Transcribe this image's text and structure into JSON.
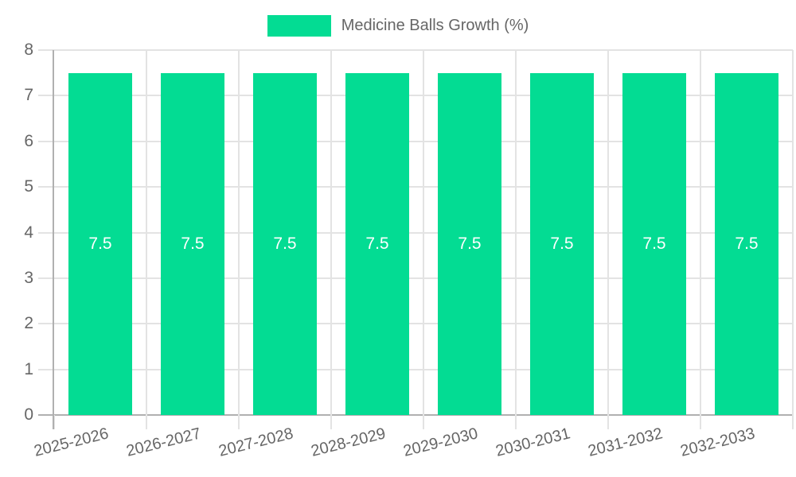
{
  "chart_data": {
    "type": "bar",
    "title": "Medicine Balls Growth (%)",
    "legend": {
      "label": "Medicine Balls Growth (%)",
      "position": "top"
    },
    "categories": [
      "2025-2026",
      "2026-2027",
      "2027-2028",
      "2028-2029",
      "2029-2030",
      "2030-2031",
      "2031-2032",
      "2032-2033"
    ],
    "series": [
      {
        "name": "Medicine Balls Growth (%)",
        "values": [
          7.5,
          7.5,
          7.5,
          7.5,
          7.5,
          7.5,
          7.5,
          7.5
        ]
      }
    ],
    "value_labels": [
      "7.5",
      "7.5",
      "7.5",
      "7.5",
      "7.5",
      "7.5",
      "7.5",
      "7.5"
    ],
    "xlabel": "",
    "ylabel": "",
    "ylim": [
      0,
      8
    ],
    "y_ticks": [
      "0",
      "1",
      "2",
      "3",
      "4",
      "5",
      "6",
      "7",
      "8"
    ],
    "grid": true,
    "x_tick_rotation_deg": -14,
    "colors": {
      "bar": "#03DC93",
      "value_label": "#FFFFFF",
      "axis_text": "#666666",
      "grid_line": "#E3E3E3",
      "axis_line": "#B0B0B0",
      "background": "#FFFFFF"
    }
  }
}
